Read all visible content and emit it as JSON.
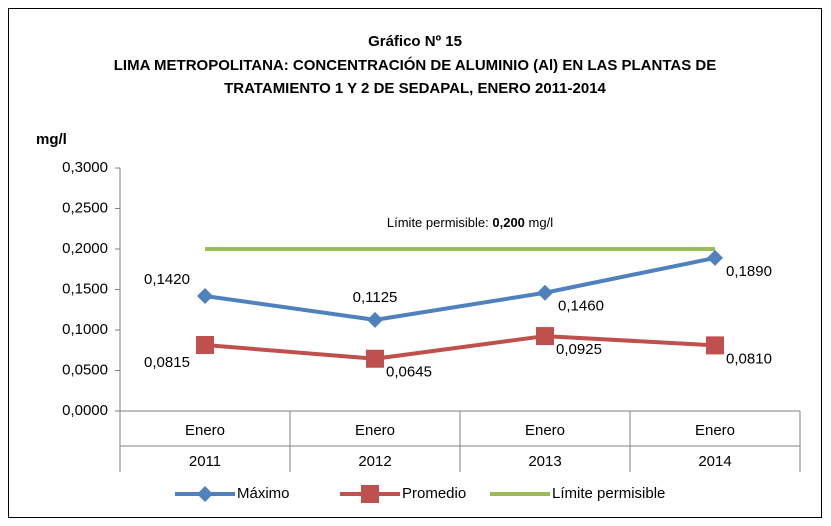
{
  "chart_data": {
    "type": "line",
    "title": [
      "Gráfico Nº 15",
      "LIMA METROPOLITANA: CONCENTRACIÓN DE ALUMINIO (Al) EN LAS PLANTAS DE",
      "TRATAMIENTO 1 Y 2 DE SEDAPAL, ENERO 2011-2014"
    ],
    "ylabel": "mg/l",
    "categories": [
      [
        "Enero",
        "2011"
      ],
      [
        "Enero",
        "2012"
      ],
      [
        "Enero",
        "2013"
      ],
      [
        "Enero",
        "2014"
      ]
    ],
    "series": [
      {
        "name": "Máximo",
        "color": "#4f81bd",
        "marker": "diamond",
        "values": [
          0.142,
          0.1125,
          0.146,
          0.189
        ],
        "value_labels": [
          "0,1420",
          "0,1125",
          "0,1460",
          "0,1890"
        ]
      },
      {
        "name": "Promedio",
        "color": "#c0504d",
        "marker": "square",
        "values": [
          0.0815,
          0.0645,
          0.0925,
          0.081
        ],
        "value_labels": [
          "0,0815",
          "0,0645",
          "0,0925",
          "0,0810"
        ]
      },
      {
        "name": "Límite permisible",
        "color": "#9bbb59",
        "marker": "none",
        "values": [
          0.2,
          0.2,
          0.2,
          0.2
        ]
      }
    ],
    "annotation": [
      "Límite permisible: ",
      "0,200",
      " mg/l"
    ],
    "ylim": [
      0,
      0.3
    ],
    "yticks": [
      {
        "value": 0,
        "label": "0,0000"
      },
      {
        "value": 0.05,
        "label": "0,0500"
      },
      {
        "value": 0.1,
        "label": "0,1000"
      },
      {
        "value": 0.15,
        "label": "0,1500"
      },
      {
        "value": 0.2,
        "label": "0,2000"
      },
      {
        "value": 0.25,
        "label": "0,2500"
      },
      {
        "value": 0.3,
        "label": "0,3000"
      }
    ],
    "legend": "bottom"
  }
}
